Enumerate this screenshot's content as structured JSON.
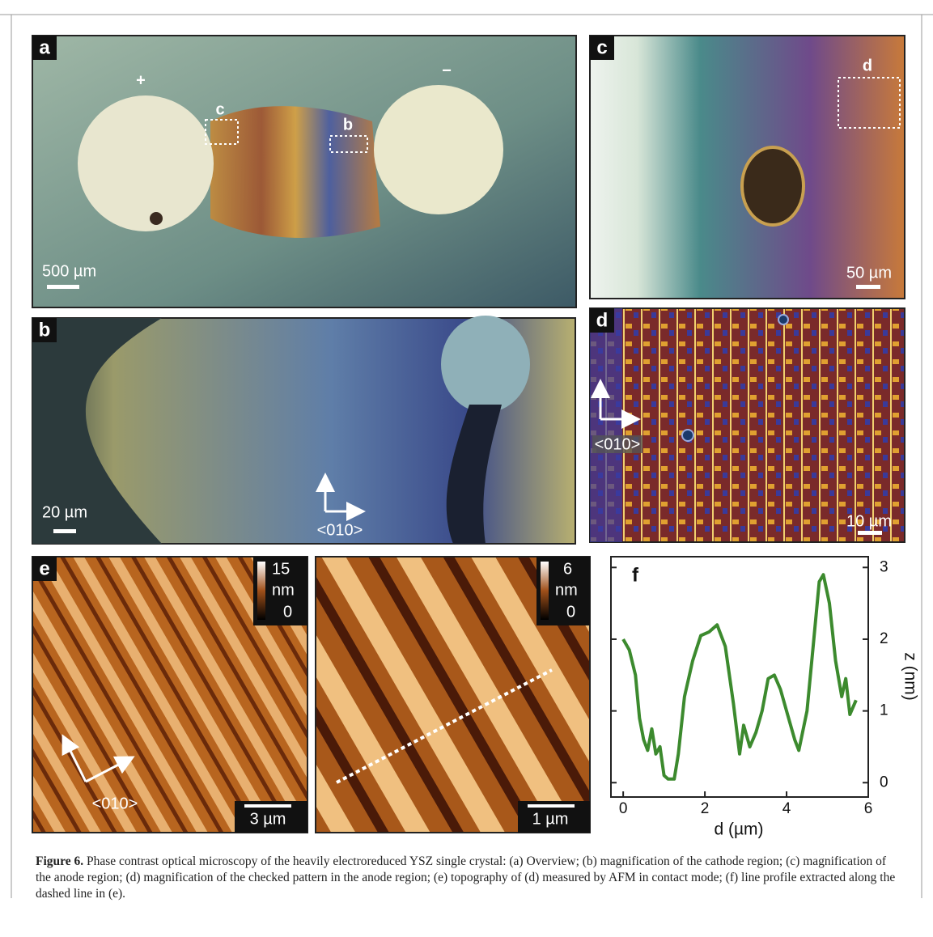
{
  "panels": {
    "a": {
      "label": "a",
      "plus": "+",
      "minus": "−",
      "box_c": "c",
      "box_b": "b",
      "scale": "500 µm"
    },
    "c": {
      "label": "c",
      "box_d": "d",
      "scale": "50 µm"
    },
    "b": {
      "label": "b",
      "scale": "20 µm",
      "direction": "<010>"
    },
    "d": {
      "label": "d",
      "direction": "<010>",
      "scale": "10 µm"
    },
    "e": {
      "label": "e",
      "cbar_max": "15",
      "cbar_unit": "nm",
      "cbar_min": "0",
      "scale": "3 µm",
      "direction": "<010>",
      "cbar2_max": "6",
      "cbar2_unit": "nm",
      "cbar2_min": "0",
      "scale2": "1 µm"
    },
    "f": {
      "label": "f"
    }
  },
  "chart_data": {
    "type": "line",
    "color": "#3c8a2e",
    "x": [
      0,
      0.15,
      0.3,
      0.4,
      0.5,
      0.6,
      0.7,
      0.8,
      0.9,
      1.0,
      1.1,
      1.25,
      1.35,
      1.5,
      1.7,
      1.9,
      2.1,
      2.3,
      2.5,
      2.7,
      2.85,
      2.95,
      3.1,
      3.25,
      3.4,
      3.55,
      3.7,
      3.85,
      4.0,
      4.2,
      4.3,
      4.5,
      4.65,
      4.8,
      4.9,
      5.05,
      5.2,
      5.35,
      5.45,
      5.55,
      5.7
    ],
    "values": [
      2.0,
      1.85,
      1.5,
      0.9,
      0.6,
      0.45,
      0.75,
      0.4,
      0.5,
      0.1,
      0.05,
      0.05,
      0.4,
      1.2,
      1.7,
      2.05,
      2.1,
      2.2,
      1.9,
      1.1,
      0.4,
      0.8,
      0.5,
      0.7,
      1.0,
      1.45,
      1.5,
      1.3,
      1.0,
      0.6,
      0.45,
      1.0,
      1.9,
      2.8,
      2.9,
      2.5,
      1.7,
      1.2,
      1.45,
      0.95,
      1.15
    ],
    "xlim": [
      -0.3,
      6
    ],
    "ylim": [
      -0.2,
      3.15
    ],
    "xticks": [
      0,
      2,
      4,
      6
    ],
    "yticks": [
      0,
      1,
      2,
      3
    ],
    "xlabel": "d (µm)",
    "ylabel": "z (nm)"
  },
  "caption": {
    "label": "Figure 6.",
    "text": "Phase contrast optical microscopy of the heavily electroreduced YSZ single crystal: (a) Overview; (b) magnification of the cathode region; (c) magnification of the anode region; (d) magnification of the checked pattern in the anode region; (e) topography of (d) measured by AFM in contact mode; (f) line profile extracted along the dashed line in (e)."
  }
}
